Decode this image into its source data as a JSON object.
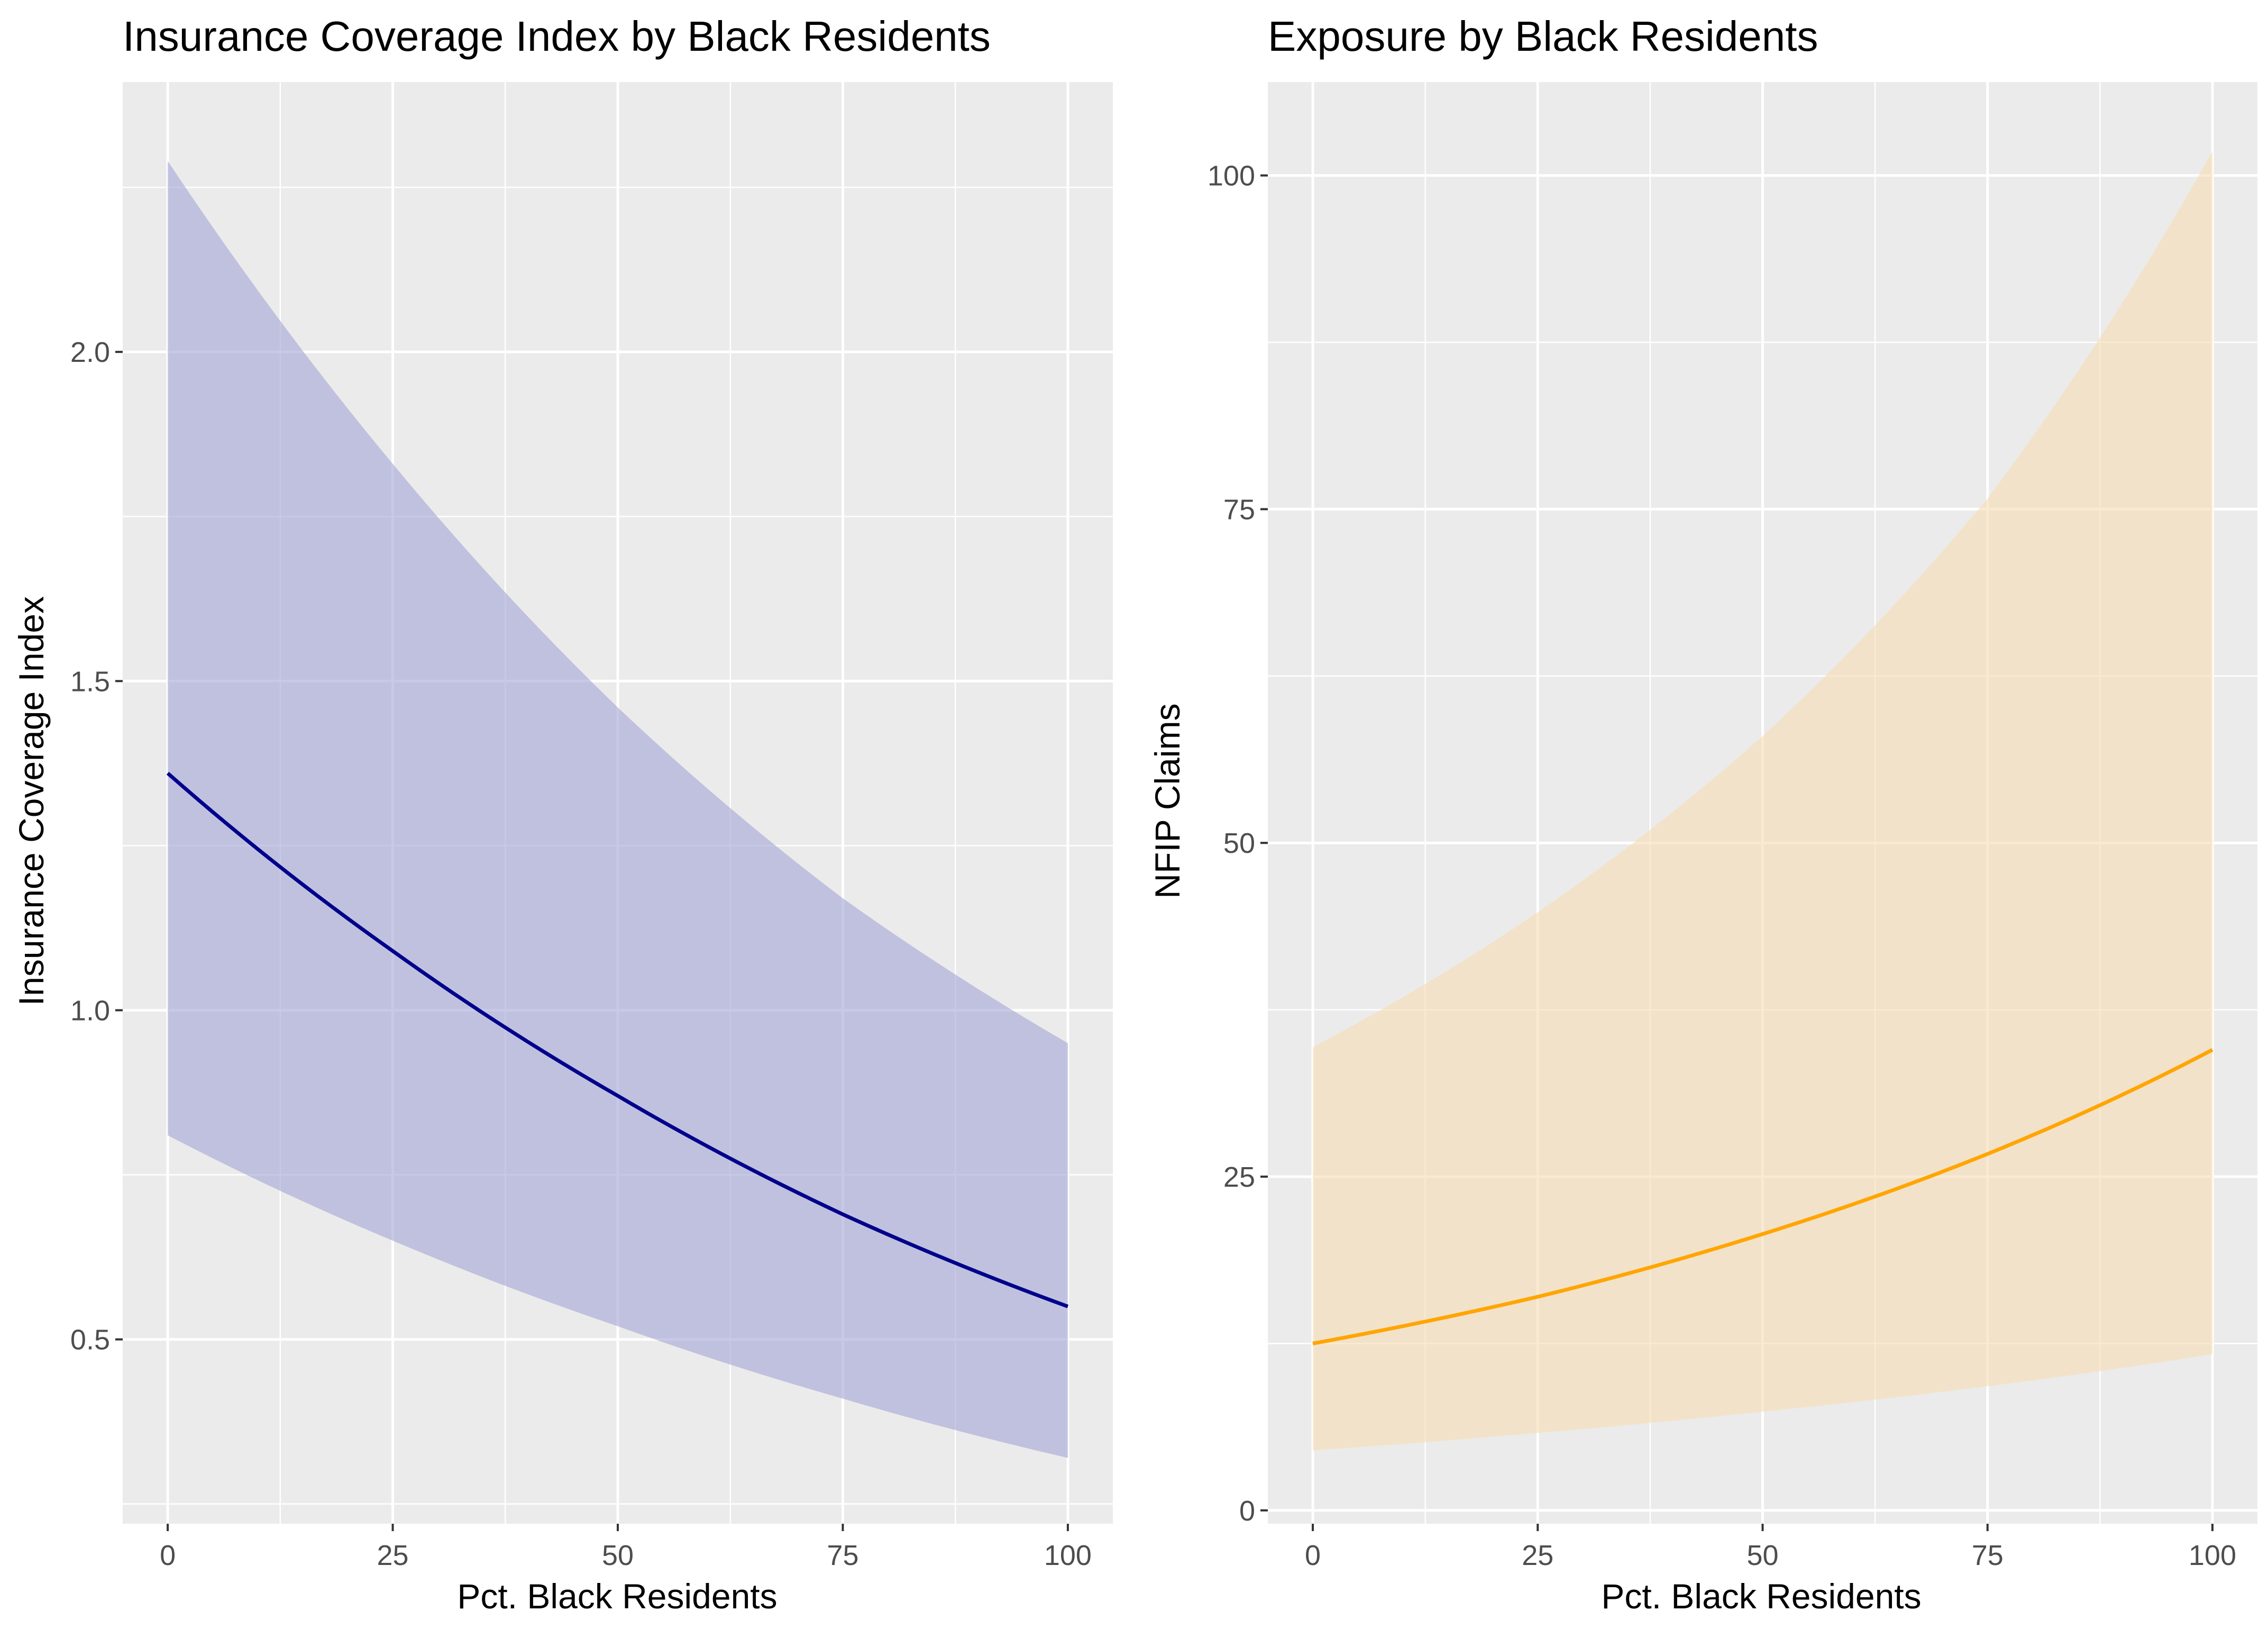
{
  "chart_data": [
    {
      "type": "line",
      "title": "Insurance Coverage Index by Black Residents",
      "xlabel": "Pct. Black Residents",
      "ylabel": "Insurance Coverage Index",
      "xlim": [
        -5,
        105
      ],
      "ylim": [
        0.22,
        2.41
      ],
      "x_ticks": [
        0,
        25,
        50,
        75,
        100
      ],
      "x_tick_labels": [
        "0",
        "25",
        "50",
        "75",
        "100"
      ],
      "y_ticks": [
        0.5,
        1.0,
        1.5,
        2.0
      ],
      "y_tick_labels": [
        "0.5",
        "1.0",
        "1.5",
        "2.0"
      ],
      "y_minor_ticks": [
        0.25,
        0.75,
        1.25,
        1.75,
        2.25
      ],
      "grid": true,
      "line_color": "#00008b",
      "ribbon_color": "#a6a8d6",
      "series": [
        {
          "name": "estimate",
          "x": [
            0,
            25,
            50,
            75,
            100
          ],
          "y": [
            1.36,
            1.09,
            0.87,
            0.69,
            0.55
          ],
          "ymin": [
            0.81,
            0.65,
            0.52,
            0.41,
            0.32
          ],
          "ymax": [
            2.29,
            1.83,
            1.46,
            1.17,
            0.95
          ]
        }
      ]
    },
    {
      "type": "line",
      "title": "Exposure by Black Residents",
      "xlabel": "Pct. Black Residents",
      "ylabel": "NFIP Claims",
      "xlim": [
        -5,
        105
      ],
      "ylim": [
        -1,
        107
      ],
      "x_ticks": [
        0,
        25,
        50,
        75,
        100
      ],
      "x_tick_labels": [
        "0",
        "25",
        "50",
        "75",
        "100"
      ],
      "y_ticks": [
        0,
        25,
        50,
        75,
        100
      ],
      "y_tick_labels": [
        "0",
        "25",
        "50",
        "75",
        "100"
      ],
      "y_minor_ticks": [
        12.5,
        37.5,
        62.5,
        87.5
      ],
      "grid": true,
      "line_color": "#ffa500",
      "ribbon_color": "#f7ddb5",
      "series": [
        {
          "name": "estimate",
          "x": [
            0,
            25,
            50,
            75,
            100
          ],
          "y": [
            12.5,
            16.0,
            20.7,
            26.7,
            34.5
          ],
          "ymin": [
            4.5,
            5.8,
            7.4,
            9.3,
            11.7
          ],
          "ymax": [
            34.7,
            44.8,
            58.0,
            75.8,
            101.8
          ]
        }
      ]
    }
  ]
}
